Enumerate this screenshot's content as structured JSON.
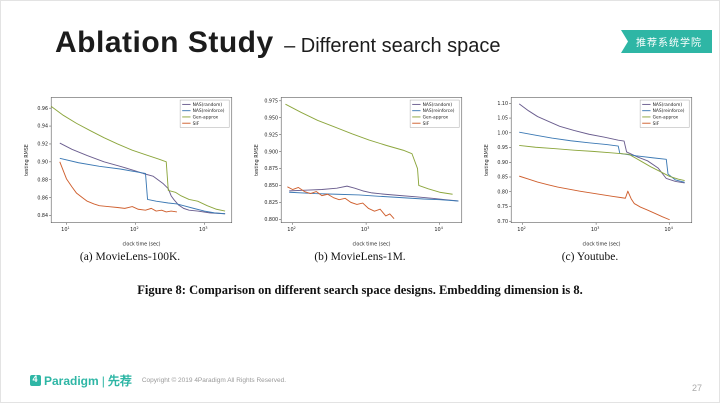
{
  "slide": {
    "title_main": "Ablation Study",
    "title_sub": "– Different search space",
    "badge": "推荐系统学院"
  },
  "figure": {
    "caption": "Figure 8: Comparison on different search space designs. Embedding dimension is 8."
  },
  "footer": {
    "logo_main": "Paradigm",
    "logo_divider": "|",
    "logo_cn": "先荐",
    "copyright": "Copyright © 2019 4Paradigm All Rights Reserved.",
    "page_number": "27"
  },
  "chart_data": [
    {
      "type": "line",
      "caption": "(a) MovieLens-100K.",
      "xlabel": "clock time (sec)",
      "ylabel": "testing RMSE",
      "x_scale": "log",
      "xlim": [
        6,
        2500
      ],
      "ylim": [
        0.832,
        0.972
      ],
      "x_tick_exponents": [
        1,
        2,
        3
      ],
      "y_ticks": {
        "values": [
          0.84,
          0.86,
          0.88,
          0.9,
          0.92,
          0.94,
          0.96
        ],
        "labels": [
          "0.84",
          "0.86",
          "0.88",
          "0.90",
          "0.92",
          "0.94",
          "0.96"
        ]
      },
      "legend_position": "top-right",
      "series": [
        {
          "name": "NAS(random)",
          "color": "#6a5d8e",
          "x": [
            8,
            12,
            20,
            35,
            60,
            90,
            130,
            180,
            250,
            300,
            330,
            360,
            420,
            500,
            600,
            800,
            1200,
            2000
          ],
          "y": [
            0.921,
            0.914,
            0.907,
            0.9,
            0.895,
            0.891,
            0.887,
            0.884,
            0.876,
            0.87,
            0.862,
            0.858,
            0.852,
            0.848,
            0.846,
            0.845,
            0.843,
            0.842
          ]
        },
        {
          "name": "NAS(reinforce)",
          "color": "#3c79b4",
          "x": [
            8,
            15,
            30,
            60,
            100,
            140,
            150,
            200,
            300,
            400,
            500,
            700,
            1000,
            1400,
            2000
          ],
          "y": [
            0.904,
            0.899,
            0.895,
            0.892,
            0.889,
            0.887,
            0.858,
            0.856,
            0.854,
            0.853,
            0.851,
            0.848,
            0.845,
            0.843,
            0.842
          ]
        },
        {
          "name": "Gen-approx",
          "color": "#8ca63d",
          "x": [
            6,
            9,
            14,
            22,
            35,
            55,
            90,
            140,
            220,
            280,
            300,
            380,
            460,
            600,
            800,
            1100,
            1500,
            2000
          ],
          "y": [
            0.962,
            0.952,
            0.943,
            0.935,
            0.927,
            0.92,
            0.913,
            0.908,
            0.903,
            0.9,
            0.868,
            0.866,
            0.862,
            0.858,
            0.856,
            0.851,
            0.847,
            0.845
          ]
        },
        {
          "name": "SIF",
          "color": "#cf5f2e",
          "x": [
            8,
            9,
            10,
            12,
            14,
            17,
            20,
            25,
            30,
            40,
            55,
            70,
            90,
            110,
            140,
            170,
            200,
            240,
            280,
            330,
            400
          ],
          "y": [
            0.9,
            0.89,
            0.881,
            0.872,
            0.865,
            0.86,
            0.856,
            0.853,
            0.851,
            0.85,
            0.849,
            0.848,
            0.85,
            0.847,
            0.846,
            0.848,
            0.845,
            0.846,
            0.844,
            0.845,
            0.844
          ]
        }
      ]
    },
    {
      "type": "line",
      "caption": "(b) MovieLens-1M.",
      "xlabel": "clock time (sec)",
      "ylabel": "testing RMSE",
      "x_scale": "log",
      "xlim": [
        70,
        20000
      ],
      "ylim": [
        0.795,
        0.98
      ],
      "x_tick_exponents": [
        2,
        3,
        4
      ],
      "y_ticks": {
        "values": [
          0.8,
          0.825,
          0.85,
          0.875,
          0.9,
          0.925,
          0.95,
          0.975
        ],
        "labels": [
          "0.800",
          "0.825",
          "0.850",
          "0.875",
          "0.900",
          "0.925",
          "0.950",
          "0.975"
        ]
      },
      "legend_position": "top-right",
      "series": [
        {
          "name": "NAS(random)",
          "color": "#6a5d8e",
          "x": [
            90,
            150,
            250,
            400,
            550,
            700,
            900,
            1200,
            1800,
            3000,
            5000,
            8000,
            12000,
            18000
          ],
          "y": [
            0.842,
            0.843,
            0.844,
            0.846,
            0.849,
            0.846,
            0.842,
            0.839,
            0.837,
            0.835,
            0.833,
            0.831,
            0.829,
            0.827
          ]
        },
        {
          "name": "NAS(reinforce)",
          "color": "#3c79b4",
          "x": [
            90,
            200,
            400,
            800,
            1500,
            3000,
            6000,
            10000,
            18000
          ],
          "y": [
            0.84,
            0.838,
            0.837,
            0.836,
            0.834,
            0.832,
            0.83,
            0.829,
            0.827
          ]
        },
        {
          "name": "Gen-approx",
          "color": "#8ca63d",
          "x": [
            80,
            130,
            220,
            380,
            650,
            1100,
            1900,
            3200,
            4200,
            5000,
            5200,
            7000,
            10000,
            15000
          ],
          "y": [
            0.97,
            0.958,
            0.946,
            0.936,
            0.926,
            0.917,
            0.909,
            0.902,
            0.897,
            0.875,
            0.85,
            0.845,
            0.84,
            0.837
          ]
        },
        {
          "name": "SIF",
          "color": "#cf5f2e",
          "x": [
            85,
            100,
            120,
            145,
            175,
            210,
            250,
            300,
            360,
            430,
            520,
            620,
            750,
            900,
            1080,
            1300,
            1550,
            1850,
            2100,
            2400
          ],
          "y": [
            0.848,
            0.844,
            0.847,
            0.841,
            0.838,
            0.841,
            0.835,
            0.837,
            0.832,
            0.829,
            0.831,
            0.825,
            0.822,
            0.824,
            0.816,
            0.812,
            0.815,
            0.805,
            0.808,
            0.801
          ]
        }
      ]
    },
    {
      "type": "line",
      "caption": "(c) Youtube.",
      "xlabel": "clock time (sec)",
      "ylabel": "testing RMSE",
      "x_scale": "log",
      "xlim": [
        70,
        20000
      ],
      "ylim": [
        0.695,
        1.12
      ],
      "x_tick_exponents": [
        2,
        3,
        4
      ],
      "y_ticks": {
        "values": [
          0.7,
          0.75,
          0.8,
          0.85,
          0.9,
          0.95,
          1.0,
          1.05,
          1.1
        ],
        "labels": [
          "0.70",
          "0.75",
          "0.80",
          "0.85",
          "0.90",
          "0.95",
          "1.00",
          "1.05",
          "1.10"
        ]
      },
      "legend_position": "top-right",
      "series": [
        {
          "name": "NAS(random)",
          "color": "#6a5d8e",
          "x": [
            90,
            120,
            160,
            220,
            320,
            500,
            800,
            1300,
            2000,
            2400,
            2600,
            3500,
            5000,
            7000,
            9000,
            12000,
            16000
          ],
          "y": [
            1.098,
            1.075,
            1.055,
            1.04,
            1.022,
            1.008,
            0.995,
            0.985,
            0.975,
            0.972,
            0.935,
            0.92,
            0.905,
            0.88,
            0.845,
            0.835,
            0.83
          ]
        },
        {
          "name": "NAS(reinforce)",
          "color": "#3c79b4",
          "x": [
            90,
            150,
            250,
            450,
            800,
            1400,
            2000,
            2100,
            3500,
            6000,
            9000,
            9500,
            12000,
            16000
          ],
          "y": [
            1.002,
            0.992,
            0.982,
            0.973,
            0.966,
            0.96,
            0.955,
            0.93,
            0.922,
            0.915,
            0.91,
            0.86,
            0.84,
            0.832
          ]
        },
        {
          "name": "Gen-approx",
          "color": "#8ca63d",
          "x": [
            90,
            150,
            280,
            500,
            900,
            1600,
            2800,
            4000,
            5500,
            7500,
            10000,
            13000,
            16000
          ],
          "y": [
            0.957,
            0.951,
            0.946,
            0.941,
            0.937,
            0.932,
            0.927,
            0.905,
            0.885,
            0.868,
            0.852,
            0.843,
            0.838
          ]
        },
        {
          "name": "SIF",
          "color": "#cf5f2e",
          "x": [
            90,
            120,
            160,
            220,
            300,
            420,
            600,
            850,
            1200,
            1700,
            2200,
            2500,
            2700,
            3000,
            3300,
            4000,
            5000,
            6500,
            8000,
            10000
          ],
          "y": [
            0.853,
            0.843,
            0.833,
            0.824,
            0.816,
            0.809,
            0.802,
            0.796,
            0.79,
            0.784,
            0.78,
            0.778,
            0.802,
            0.776,
            0.76,
            0.748,
            0.738,
            0.725,
            0.715,
            0.705
          ]
        }
      ]
    }
  ]
}
